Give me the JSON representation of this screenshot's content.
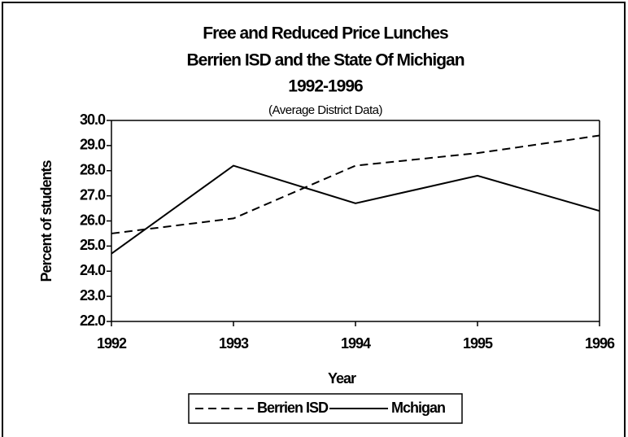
{
  "chart_data": {
    "type": "line",
    "title": [
      "Free and Reduced Price Lunches",
      "Berrien ISD and the State Of Michigan",
      "1992-1996"
    ],
    "subtitle": "(Average District Data)",
    "x_label": "Year",
    "y_label": "Percent of students",
    "x": [
      1992,
      1993,
      1994,
      1995,
      1996
    ],
    "xlim": [
      1992,
      1996
    ],
    "xticks": [
      1992,
      1993,
      1994,
      1995,
      1996
    ],
    "ylim": [
      22,
      30
    ],
    "yticks": [
      {
        "value": 22,
        "label": "22.0"
      },
      {
        "value": 23,
        "label": "23.0"
      },
      {
        "value": 24,
        "label": "24.0"
      },
      {
        "value": 25,
        "label": "25.0"
      },
      {
        "value": 26,
        "label": "26.0"
      },
      {
        "value": 27,
        "label": "27.0"
      },
      {
        "value": 28,
        "label": "28.0"
      },
      {
        "value": 29,
        "label": "29.0"
      },
      {
        "value": 30,
        "label": "30.0"
      }
    ],
    "grid": false,
    "legend": "bottom",
    "series": [
      {
        "name": "Berrien ISD",
        "color": "#000000",
        "style": "dashed",
        "values": [
          25.5,
          26.1,
          28.2,
          28.7,
          29.4
        ]
      },
      {
        "name": "Mchigan",
        "color": "#000000",
        "style": "solid",
        "values": [
          24.7,
          28.2,
          26.7,
          27.8,
          26.4
        ]
      }
    ]
  }
}
